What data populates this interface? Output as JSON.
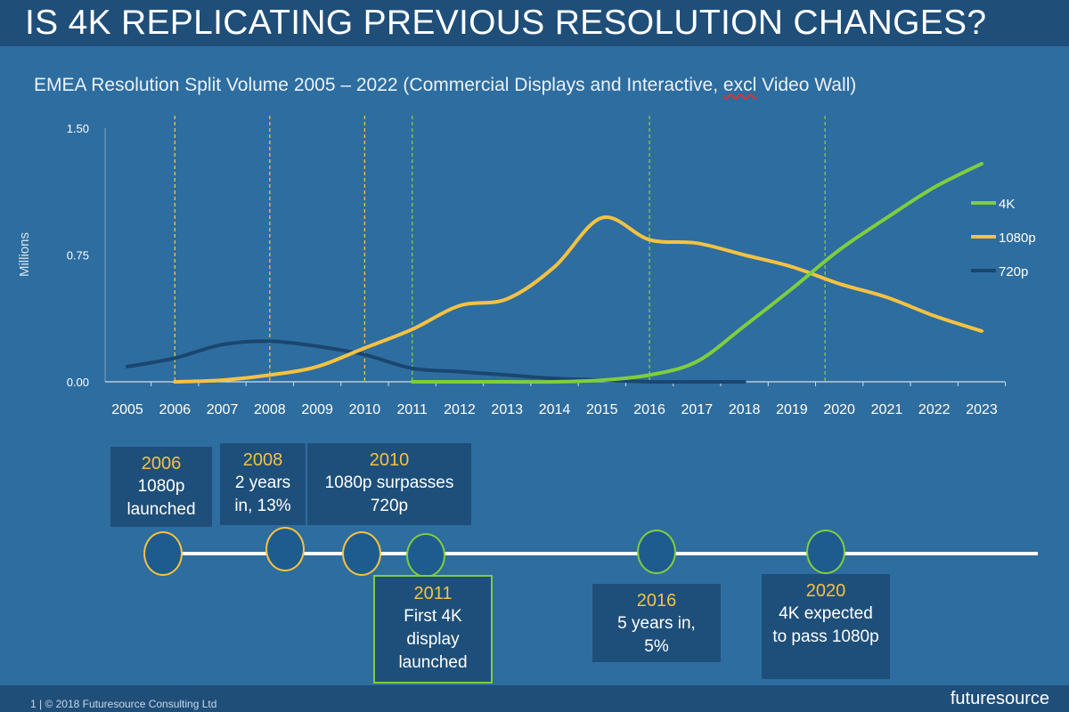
{
  "header": {
    "title": "IS 4K REPLICATING PREVIOUS RESOLUTION CHANGES?"
  },
  "subtitle": {
    "prefix": "EMEA Resolution Split  Volume 2005 – 2022 (Commercial Displays and Interactive, ",
    "underlined": "excl",
    "suffix": " Video Wall)"
  },
  "chart_data": {
    "type": "line",
    "ylabel": "Millions",
    "ylim": [
      0,
      1.5
    ],
    "y_ticks": [
      "0.00",
      "0.75",
      "1.50"
    ],
    "y_tick_values": [
      0,
      0.75,
      1.5
    ],
    "categories": [
      "2005",
      "2006",
      "2007",
      "2008",
      "2009",
      "2010",
      "2011",
      "2012",
      "2013",
      "2014",
      "2015",
      "2016",
      "2017",
      "2018",
      "2019",
      "2020",
      "2021",
      "2022",
      "2023"
    ],
    "series": [
      {
        "name": "4K",
        "color": "#7fce3d",
        "points": [
          [
            2011,
            0.0
          ],
          [
            2012,
            0.0
          ],
          [
            2013,
            0.0
          ],
          [
            2014,
            0.0
          ],
          [
            2015,
            0.01
          ],
          [
            2016,
            0.04
          ],
          [
            2017,
            0.12
          ],
          [
            2018,
            0.33
          ],
          [
            2019,
            0.55
          ],
          [
            2020,
            0.78
          ],
          [
            2021,
            0.97
          ],
          [
            2022,
            1.15
          ],
          [
            2023,
            1.29
          ]
        ]
      },
      {
        "name": "1080p",
        "color": "#f5c242",
        "points": [
          [
            2006,
            0.0
          ],
          [
            2007,
            0.01
          ],
          [
            2008,
            0.04
          ],
          [
            2009,
            0.09
          ],
          [
            2010,
            0.2
          ],
          [
            2011,
            0.31
          ],
          [
            2012,
            0.45
          ],
          [
            2013,
            0.49
          ],
          [
            2014,
            0.68
          ],
          [
            2015,
            0.97
          ],
          [
            2016,
            0.84
          ],
          [
            2017,
            0.82
          ],
          [
            2018,
            0.75
          ],
          [
            2019,
            0.68
          ],
          [
            2020,
            0.58
          ],
          [
            2021,
            0.5
          ],
          [
            2022,
            0.39
          ],
          [
            2023,
            0.3
          ]
        ]
      },
      {
        "name": "720p",
        "color": "#1a4670",
        "points": [
          [
            2005,
            0.09
          ],
          [
            2006,
            0.14
          ],
          [
            2007,
            0.22
          ],
          [
            2008,
            0.24
          ],
          [
            2009,
            0.21
          ],
          [
            2010,
            0.16
          ],
          [
            2011,
            0.08
          ],
          [
            2012,
            0.06
          ],
          [
            2013,
            0.04
          ],
          [
            2014,
            0.02
          ],
          [
            2015,
            0.01
          ],
          [
            2016,
            0.0
          ],
          [
            2017,
            0.0
          ],
          [
            2018,
            0.0
          ]
        ]
      }
    ],
    "markers": [
      {
        "x": 2006,
        "color": "#f5c242"
      },
      {
        "x": 2008,
        "color": "#f5c242"
      },
      {
        "x": 2010,
        "color": "#f5c242"
      },
      {
        "x": 2011,
        "color": "#7fce3d"
      },
      {
        "x": 2016,
        "color": "#7fce3d"
      },
      {
        "x": 2019.7,
        "color": "#7fce3d"
      }
    ],
    "legend_position": "right"
  },
  "milestones": [
    {
      "year": "2006",
      "text": "1080p launched"
    },
    {
      "year": "2008",
      "text": "2 years in, 13%"
    },
    {
      "year": "2010",
      "text": "1080p surpasses 720p"
    },
    {
      "year": "2011",
      "text": "First 4K display launched"
    },
    {
      "year": "2016",
      "text": "5 years in, 5%"
    },
    {
      "year": "2020",
      "text": "4K expected to pass 1080p"
    }
  ],
  "footer": {
    "text": "1  |  © 2018 Futuresource Consulting Ltd",
    "logo": "futuresource"
  }
}
